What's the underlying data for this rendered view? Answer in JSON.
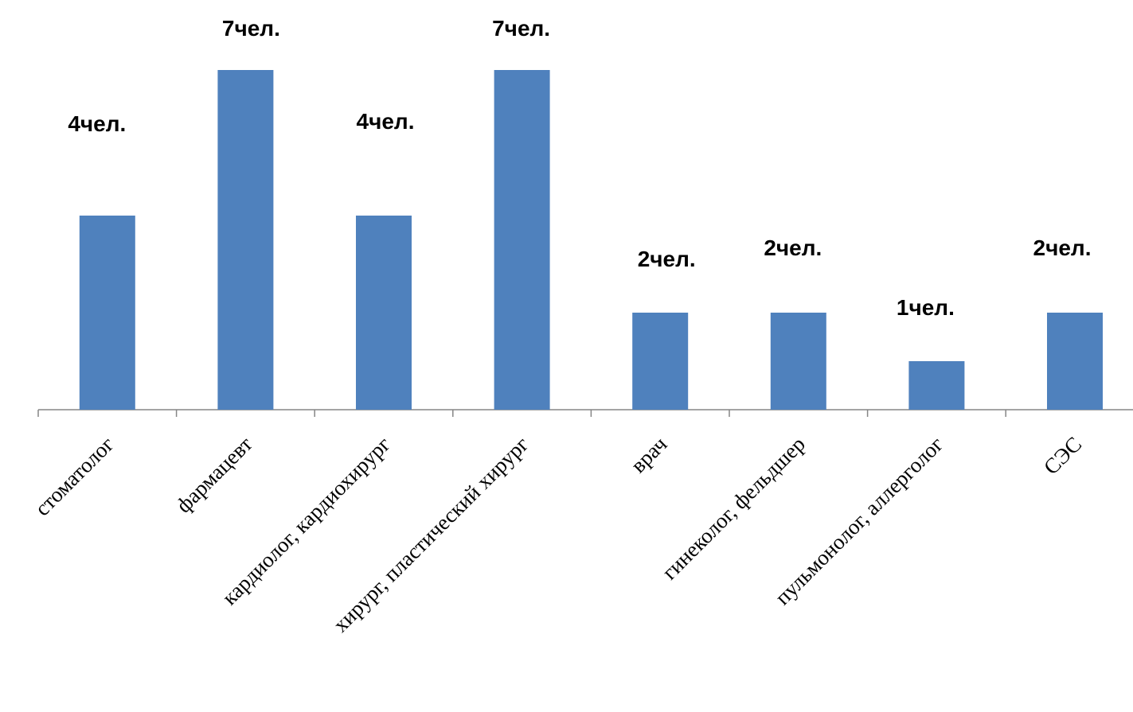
{
  "chart_data": {
    "type": "bar",
    "categories": [
      "стоматолог",
      "фармацевт",
      "кардиолог, кардиохирург",
      "хирург, пластический хирург",
      "врач",
      "гинеколог, фельдшер",
      "пульмонолог, аллерголог",
      "СЭС"
    ],
    "values": [
      4,
      7,
      4,
      7,
      2,
      2,
      1,
      2
    ],
    "value_labels": [
      "4чел.",
      "7чел.",
      "4чел.",
      "7чел.",
      "2чел.",
      "2чел.",
      "1чел.",
      "2чел."
    ],
    "color": "#4f81bd"
  }
}
